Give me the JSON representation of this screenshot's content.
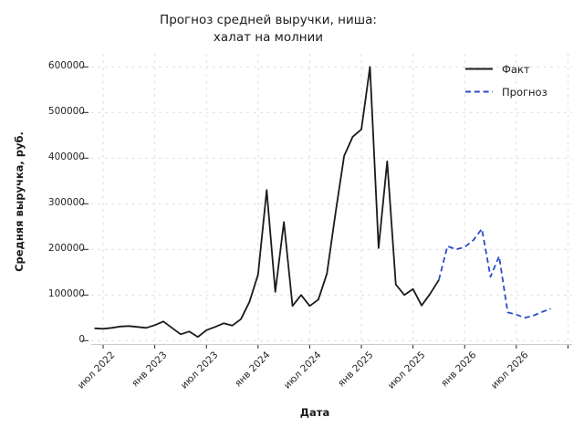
{
  "title": {
    "line1": "Прогноз средней выручки, ниша:",
    "line2": "халат на молнии"
  },
  "axes": {
    "x_label": "Дата",
    "y_label": "Средняя выручка, руб.",
    "y_ticklabels": [
      "0",
      "100000",
      "200000",
      "300000",
      "400000",
      "500000",
      "600000"
    ],
    "x_ticklabels": [
      "июл 2022",
      "янв 2023",
      "июл 2023",
      "янв 2024",
      "июл 2024",
      "янв 2025",
      "июл 2025",
      "янв 2026",
      "июл 2026"
    ]
  },
  "legend": [
    {
      "label": "Факт",
      "style": "solid",
      "color": "#1a1a1a"
    },
    {
      "label": "Прогноз",
      "style": "dashed",
      "color": "#2a4cc8"
    }
  ],
  "chart_data": {
    "type": "line",
    "title": "Прогноз средней выручки, ниша: халат на молнии",
    "xlabel": "Дата",
    "ylabel": "Средняя выручка, руб.",
    "x_unit": "month",
    "ylim": [
      0,
      600000
    ],
    "y_ticks": [
      0,
      100000,
      200000,
      300000,
      400000,
      500000,
      600000
    ],
    "x_tick_positions": [
      1,
      7,
      13,
      19,
      25,
      31,
      37,
      43,
      49,
      55
    ],
    "grid": "both-dashed-light",
    "legend_position": "upper-right",
    "series": [
      {
        "name": "Факт",
        "color": "#1a1a1a",
        "dash": "solid",
        "start_index": 0,
        "start_month": "2022-06",
        "months": [
          "2022-06",
          "2022-07",
          "2022-08",
          "2022-09",
          "2022-10",
          "2022-11",
          "2022-12",
          "2023-01",
          "2023-02",
          "2023-03",
          "2023-04",
          "2023-05",
          "2023-06",
          "2023-07",
          "2023-08",
          "2023-09",
          "2023-10",
          "2023-11",
          "2023-12",
          "2024-01",
          "2024-02",
          "2024-03",
          "2024-04",
          "2024-05",
          "2024-06",
          "2024-07",
          "2024-08",
          "2024-09",
          "2024-10",
          "2024-11",
          "2024-12",
          "2025-01",
          "2025-02",
          "2025-03",
          "2025-04",
          "2025-05",
          "2025-06",
          "2025-07",
          "2025-08",
          "2025-09",
          "2025-10"
        ],
        "values": [
          27000,
          26000,
          28000,
          31000,
          32000,
          30000,
          28000,
          34000,
          42000,
          28000,
          14000,
          20000,
          8000,
          23000,
          30000,
          38000,
          33000,
          47000,
          85000,
          145000,
          330000,
          107000,
          260000,
          76000,
          100000,
          76000,
          90000,
          147000,
          280000,
          405000,
          447000,
          463000,
          600000,
          203000,
          393000,
          123000,
          100000,
          113000,
          77000,
          103000,
          133000
        ]
      },
      {
        "name": "Прогноз",
        "color": "#2a4cc8",
        "dash": "dashed",
        "start_index": 40,
        "start_month": "2025-10",
        "months": [
          "2025-10",
          "2025-11",
          "2025-12",
          "2026-01",
          "2026-02",
          "2026-03",
          "2026-04",
          "2026-05",
          "2026-06",
          "2026-07",
          "2026-08",
          "2026-09",
          "2026-10",
          "2026-11"
        ],
        "values": [
          133000,
          207000,
          200000,
          205000,
          220000,
          245000,
          140000,
          185000,
          62000,
          57000,
          50000,
          55000,
          63000,
          70000
        ]
      }
    ]
  }
}
